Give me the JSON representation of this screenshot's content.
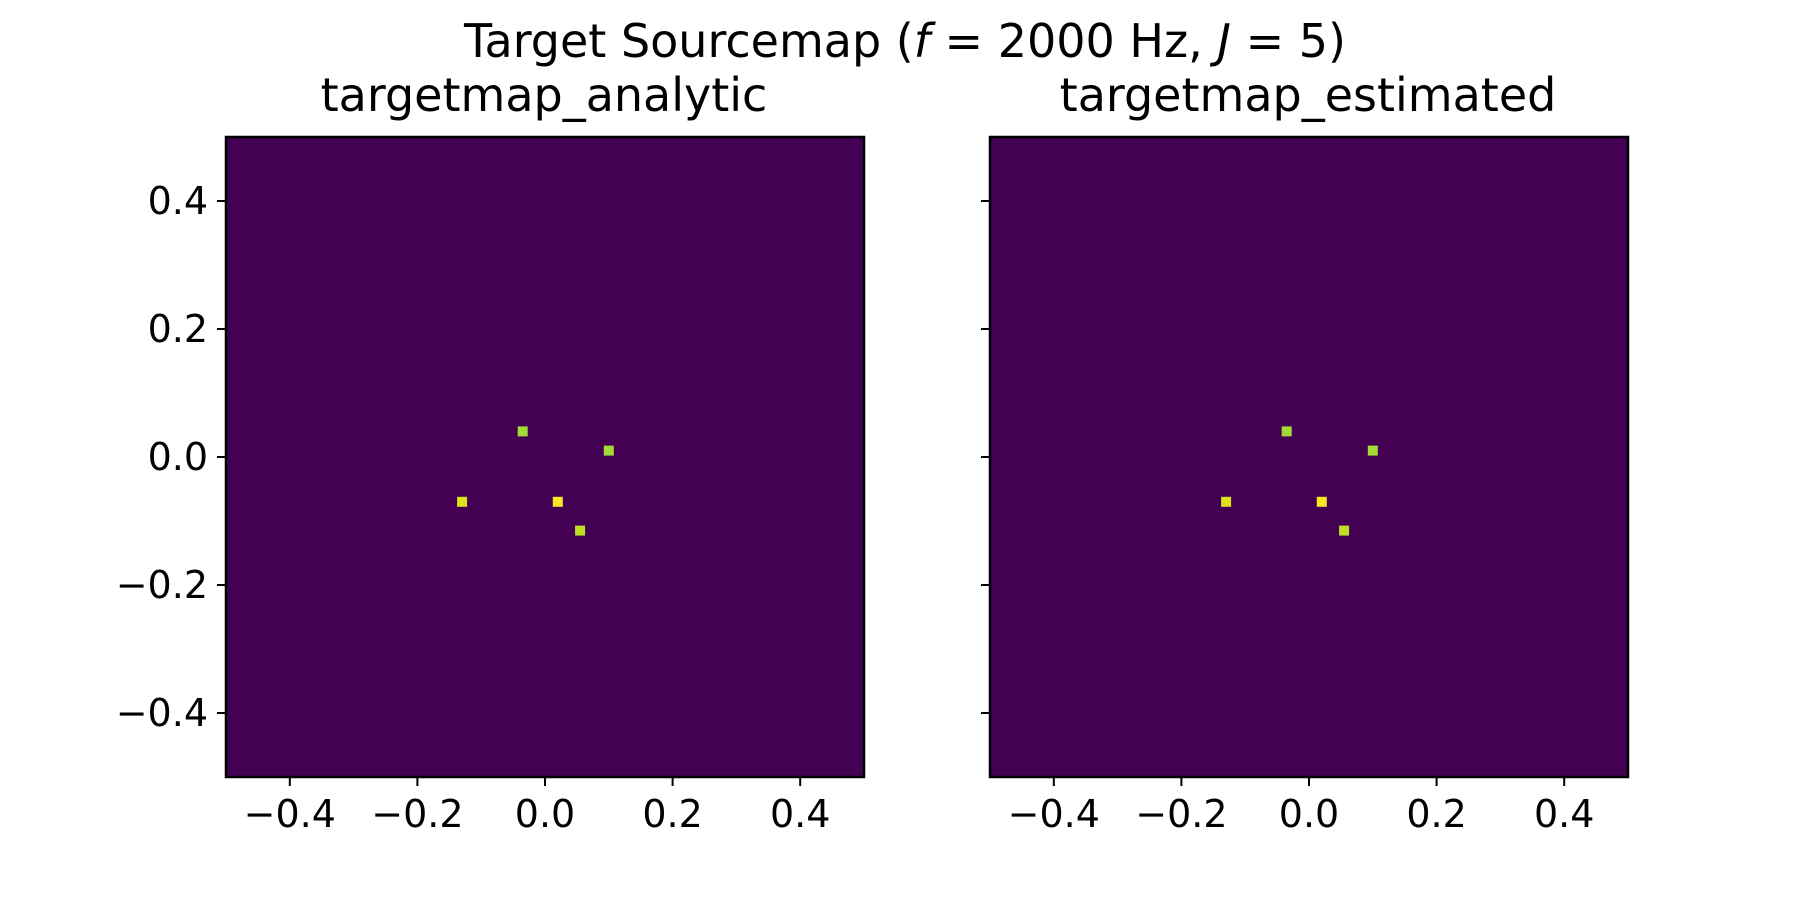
{
  "figure": {
    "suptitle": {
      "prefix": "Target Sourcemap (",
      "f_symbol": "f",
      "f_value": " = 2000 Hz, ",
      "j_symbol": "J",
      "j_value": " = 5)"
    }
  },
  "chart_data": [
    {
      "type": "heatmap",
      "title": "targetmap_analytic",
      "xlabel": "",
      "ylabel": "",
      "xlim": [
        -0.5,
        0.5
      ],
      "ylim": [
        -0.5,
        0.5
      ],
      "xticks": [
        -0.4,
        -0.2,
        0.0,
        0.2,
        0.4
      ],
      "yticks": [
        -0.4,
        -0.2,
        0.0,
        0.2,
        0.4
      ],
      "xtick_labels": [
        "−0.4",
        "−0.2",
        "0.0",
        "0.2",
        "0.4"
      ],
      "ytick_labels": [
        "−0.4",
        "−0.2",
        "0.0",
        "0.2",
        "0.4"
      ],
      "show_ytick_labels": true,
      "grid": false,
      "colormap": "viridis",
      "background_value": 0,
      "background_color": "#440154",
      "points": [
        {
          "x": -0.035,
          "y": 0.04,
          "value": 0.85,
          "color": "#a5db36"
        },
        {
          "x": 0.1,
          "y": 0.01,
          "value": 0.85,
          "color": "#a5db36"
        },
        {
          "x": -0.13,
          "y": -0.07,
          "value": 0.95,
          "color": "#dde318"
        },
        {
          "x": 0.02,
          "y": -0.07,
          "value": 1.0,
          "color": "#fde725"
        },
        {
          "x": 0.055,
          "y": -0.115,
          "value": 0.9,
          "color": "#bddf26"
        }
      ]
    },
    {
      "type": "heatmap",
      "title": "targetmap_estimated",
      "xlabel": "",
      "ylabel": "",
      "xlim": [
        -0.5,
        0.5
      ],
      "ylim": [
        -0.5,
        0.5
      ],
      "xticks": [
        -0.4,
        -0.2,
        0.0,
        0.2,
        0.4
      ],
      "yticks": [
        -0.4,
        -0.2,
        0.0,
        0.2,
        0.4
      ],
      "xtick_labels": [
        "−0.4",
        "−0.2",
        "0.0",
        "0.2",
        "0.4"
      ],
      "ytick_labels": [
        "",
        "",
        "",
        "",
        ""
      ],
      "show_ytick_labels": false,
      "grid": false,
      "colormap": "viridis",
      "background_value": 0,
      "background_color": "#440154",
      "points": [
        {
          "x": -0.035,
          "y": 0.04,
          "value": 0.85,
          "color": "#a5db36"
        },
        {
          "x": 0.1,
          "y": 0.01,
          "value": 0.85,
          "color": "#a5db36"
        },
        {
          "x": -0.13,
          "y": -0.07,
          "value": 0.95,
          "color": "#dde318"
        },
        {
          "x": 0.02,
          "y": -0.07,
          "value": 1.0,
          "color": "#fde725"
        },
        {
          "x": 0.055,
          "y": -0.115,
          "value": 0.9,
          "color": "#bddf26"
        }
      ]
    }
  ]
}
